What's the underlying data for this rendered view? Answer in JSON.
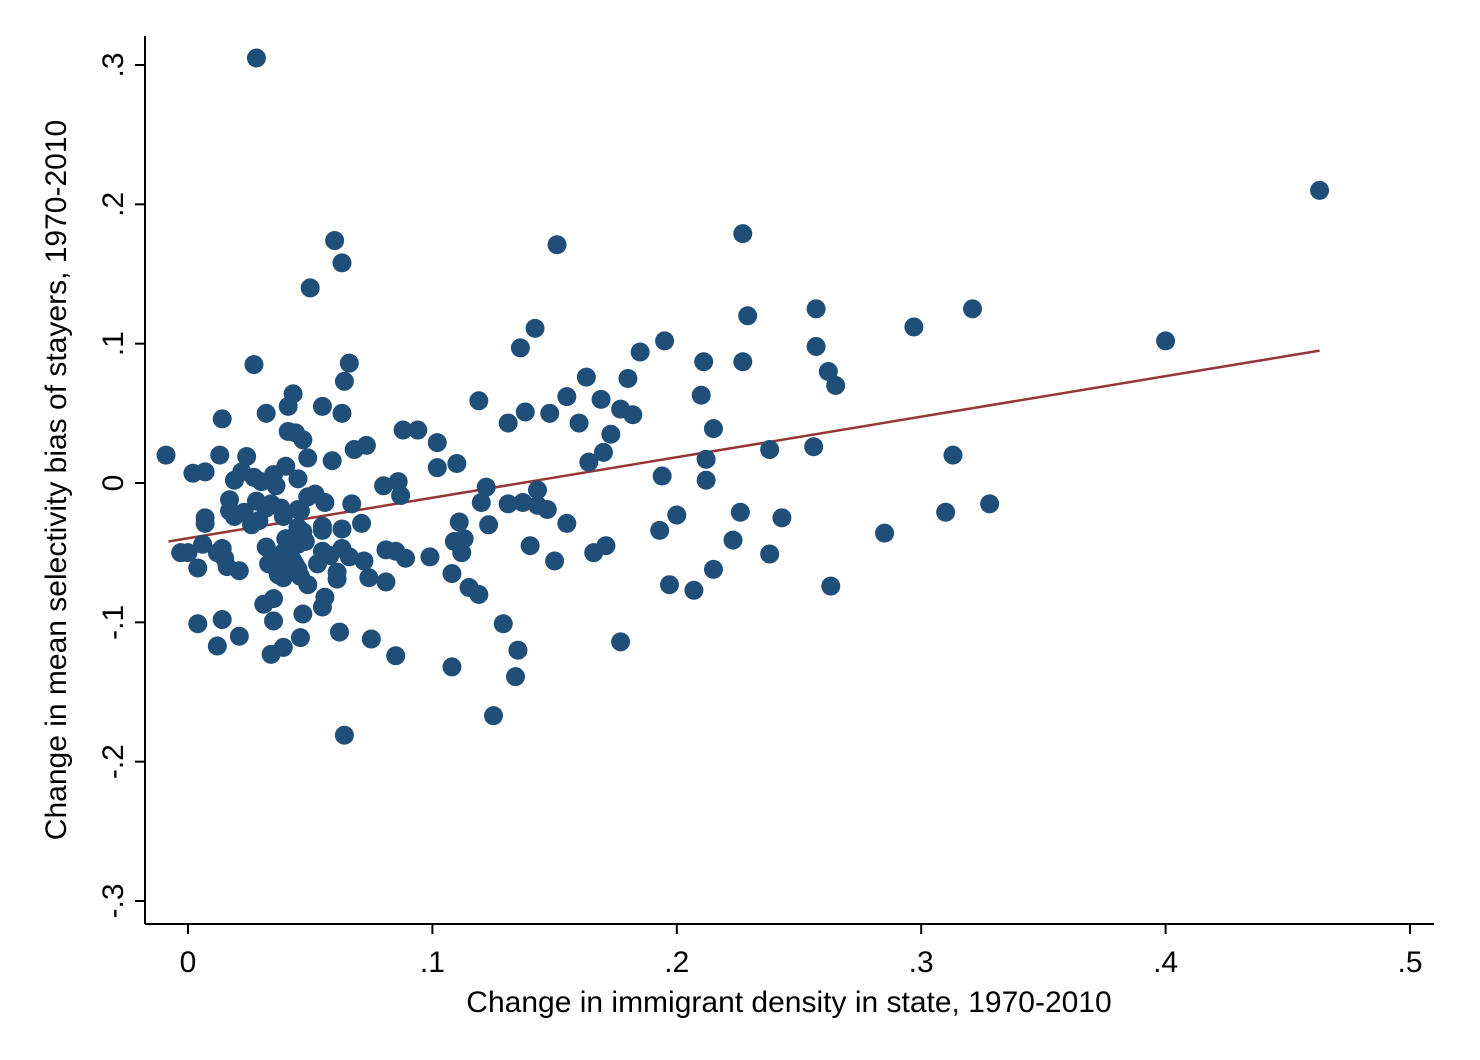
{
  "chart_data": {
    "type": "scatter",
    "title": "",
    "xlabel": "Change in immigrant density in state, 1970-2010",
    "ylabel": "Change in mean selectivity bias of stayers, 1970-2010",
    "xlim": [
      -0.018,
      0.508
    ],
    "ylim": [
      -0.31,
      0.32
    ],
    "xticks": [
      0,
      0.1,
      0.2,
      0.3,
      0.4,
      0.5
    ],
    "xtick_labels": [
      "0",
      ".1",
      ".2",
      ".3",
      ".4",
      ".5"
    ],
    "yticks": [
      -0.3,
      -0.2,
      -0.1,
      0,
      0.1,
      0.2,
      0.3
    ],
    "ytick_labels": [
      "-.3",
      "-.2",
      "-.1",
      "0",
      ".1",
      ".2",
      ".3"
    ],
    "grid": false,
    "legend": "none",
    "colors": {
      "points": "#1f4e79",
      "fit_line": "#963634",
      "axes": "#000000"
    },
    "fit_line": {
      "x": [
        -0.008,
        0.463
      ],
      "y": [
        -0.042,
        0.095
      ]
    },
    "points": [
      {
        "x": 0.028,
        "y": 0.305
      },
      {
        "x": 0.463,
        "y": 0.21
      },
      {
        "x": 0.227,
        "y": 0.179
      },
      {
        "x": 0.06,
        "y": 0.174
      },
      {
        "x": 0.151,
        "y": 0.171
      },
      {
        "x": 0.063,
        "y": 0.158
      },
      {
        "x": 0.05,
        "y": 0.14
      },
      {
        "x": 0.257,
        "y": 0.125
      },
      {
        "x": 0.321,
        "y": 0.125
      },
      {
        "x": 0.229,
        "y": 0.12
      },
      {
        "x": 0.297,
        "y": 0.112
      },
      {
        "x": 0.142,
        "y": 0.111
      },
      {
        "x": 0.195,
        "y": 0.102
      },
      {
        "x": 0.4,
        "y": 0.102
      },
      {
        "x": 0.257,
        "y": 0.098
      },
      {
        "x": 0.136,
        "y": 0.097
      },
      {
        "x": 0.185,
        "y": 0.094
      },
      {
        "x": 0.211,
        "y": 0.087
      },
      {
        "x": 0.227,
        "y": 0.087
      },
      {
        "x": 0.066,
        "y": 0.086
      },
      {
        "x": 0.027,
        "y": 0.085
      },
      {
        "x": 0.262,
        "y": 0.08
      },
      {
        "x": 0.163,
        "y": 0.076
      },
      {
        "x": 0.18,
        "y": 0.075
      },
      {
        "x": 0.064,
        "y": 0.073
      },
      {
        "x": 0.265,
        "y": 0.07
      },
      {
        "x": 0.043,
        "y": 0.064
      },
      {
        "x": 0.21,
        "y": 0.063
      },
      {
        "x": 0.155,
        "y": 0.062
      },
      {
        "x": 0.169,
        "y": 0.06
      },
      {
        "x": 0.119,
        "y": 0.059
      },
      {
        "x": 0.041,
        "y": 0.055
      },
      {
        "x": 0.055,
        "y": 0.055
      },
      {
        "x": 0.177,
        "y": 0.053
      },
      {
        "x": 0.138,
        "y": 0.051
      },
      {
        "x": 0.032,
        "y": 0.05
      },
      {
        "x": 0.063,
        "y": 0.05
      },
      {
        "x": 0.148,
        "y": 0.05
      },
      {
        "x": 0.182,
        "y": 0.049
      },
      {
        "x": 0.014,
        "y": 0.046
      },
      {
        "x": 0.131,
        "y": 0.043
      },
      {
        "x": 0.16,
        "y": 0.043
      },
      {
        "x": 0.215,
        "y": 0.039
      },
      {
        "x": 0.088,
        "y": 0.038
      },
      {
        "x": 0.094,
        "y": 0.038
      },
      {
        "x": 0.041,
        "y": 0.037
      },
      {
        "x": 0.044,
        "y": 0.036
      },
      {
        "x": 0.173,
        "y": 0.035
      },
      {
        "x": 0.047,
        "y": 0.031
      },
      {
        "x": 0.102,
        "y": 0.029
      },
      {
        "x": 0.073,
        "y": 0.027
      },
      {
        "x": 0.256,
        "y": 0.026
      },
      {
        "x": 0.068,
        "y": 0.024
      },
      {
        "x": 0.238,
        "y": 0.024
      },
      {
        "x": 0.17,
        "y": 0.022
      },
      {
        "x": -0.009,
        "y": 0.02
      },
      {
        "x": 0.013,
        "y": 0.02
      },
      {
        "x": 0.313,
        "y": 0.02
      },
      {
        "x": 0.024,
        "y": 0.019
      },
      {
        "x": 0.049,
        "y": 0.018
      },
      {
        "x": 0.212,
        "y": 0.017
      },
      {
        "x": 0.059,
        "y": 0.016
      },
      {
        "x": 0.164,
        "y": 0.015
      },
      {
        "x": 0.11,
        "y": 0.014
      },
      {
        "x": 0.04,
        "y": 0.012
      },
      {
        "x": 0.102,
        "y": 0.011
      },
      {
        "x": 0.007,
        "y": 0.008
      },
      {
        "x": 0.022,
        "y": 0.008
      },
      {
        "x": 0.002,
        "y": 0.007
      },
      {
        "x": 0.035,
        "y": 0.006
      },
      {
        "x": 0.194,
        "y": 0.005
      },
      {
        "x": 0.027,
        "y": 0.004
      },
      {
        "x": 0.045,
        "y": 0.003
      },
      {
        "x": 0.212,
        "y": 0.002
      },
      {
        "x": 0.019,
        "y": 0.002
      },
      {
        "x": 0.03,
        "y": 0.001
      },
      {
        "x": 0.086,
        "y": 0.001
      },
      {
        "x": 0.036,
        "y": -0.002
      },
      {
        "x": 0.08,
        "y": -0.002
      },
      {
        "x": 0.122,
        "y": -0.003
      },
      {
        "x": 0.143,
        "y": -0.005
      },
      {
        "x": 0.052,
        "y": -0.008
      },
      {
        "x": 0.087,
        "y": -0.009
      },
      {
        "x": 0.049,
        "y": -0.01
      },
      {
        "x": 0.017,
        "y": -0.012
      },
      {
        "x": 0.028,
        "y": -0.013
      },
      {
        "x": 0.056,
        "y": -0.014
      },
      {
        "x": 0.12,
        "y": -0.014
      },
      {
        "x": 0.137,
        "y": -0.014
      },
      {
        "x": 0.034,
        "y": -0.015
      },
      {
        "x": 0.067,
        "y": -0.015
      },
      {
        "x": 0.131,
        "y": -0.015
      },
      {
        "x": 0.328,
        "y": -0.015
      },
      {
        "x": 0.143,
        "y": -0.016
      },
      {
        "x": 0.032,
        "y": -0.018
      },
      {
        "x": 0.038,
        "y": -0.018
      },
      {
        "x": 0.045,
        "y": -0.019
      },
      {
        "x": 0.147,
        "y": -0.019
      },
      {
        "x": 0.017,
        "y": -0.02
      },
      {
        "x": 0.046,
        "y": -0.02
      },
      {
        "x": 0.023,
        "y": -0.021
      },
      {
        "x": 0.226,
        "y": -0.021
      },
      {
        "x": 0.31,
        "y": -0.021
      },
      {
        "x": 0.2,
        "y": -0.023
      },
      {
        "x": 0.019,
        "y": -0.024
      },
      {
        "x": 0.039,
        "y": -0.024
      },
      {
        "x": 0.007,
        "y": -0.025
      },
      {
        "x": 0.243,
        "y": -0.025
      },
      {
        "x": 0.029,
        "y": -0.027
      },
      {
        "x": 0.111,
        "y": -0.028
      },
      {
        "x": 0.007,
        "y": -0.029
      },
      {
        "x": 0.071,
        "y": -0.029
      },
      {
        "x": 0.155,
        "y": -0.029
      },
      {
        "x": 0.026,
        "y": -0.03
      },
      {
        "x": 0.123,
        "y": -0.03
      },
      {
        "x": 0.055,
        "y": -0.031
      },
      {
        "x": 0.045,
        "y": -0.032
      },
      {
        "x": 0.063,
        "y": -0.033
      },
      {
        "x": 0.055,
        "y": -0.034
      },
      {
        "x": 0.193,
        "y": -0.034
      },
      {
        "x": 0.047,
        "y": -0.035
      },
      {
        "x": 0.285,
        "y": -0.036
      },
      {
        "x": 0.045,
        "y": -0.038
      },
      {
        "x": 0.043,
        "y": -0.039
      },
      {
        "x": 0.04,
        "y": -0.04
      },
      {
        "x": 0.113,
        "y": -0.04
      },
      {
        "x": 0.223,
        "y": -0.041
      },
      {
        "x": 0.048,
        "y": -0.042
      },
      {
        "x": 0.109,
        "y": -0.042
      },
      {
        "x": 0.006,
        "y": -0.044
      },
      {
        "x": 0.045,
        "y": -0.044
      },
      {
        "x": 0.171,
        "y": -0.045
      },
      {
        "x": 0.14,
        "y": -0.045
      },
      {
        "x": 0.032,
        "y": -0.046
      },
      {
        "x": 0.063,
        "y": -0.047
      },
      {
        "x": 0.014,
        "y": -0.047
      },
      {
        "x": 0.081,
        "y": -0.048
      },
      {
        "x": 0.085,
        "y": -0.049
      },
      {
        "x": 0.055,
        "y": -0.049
      },
      {
        "x": -0.003,
        "y": -0.05
      },
      {
        "x": 0.0,
        "y": -0.05
      },
      {
        "x": 0.039,
        "y": -0.05
      },
      {
        "x": 0.112,
        "y": -0.05
      },
      {
        "x": 0.166,
        "y": -0.05
      },
      {
        "x": 0.012,
        "y": -0.05
      },
      {
        "x": 0.238,
        "y": -0.051
      },
      {
        "x": 0.058,
        "y": -0.052
      },
      {
        "x": 0.099,
        "y": -0.053
      },
      {
        "x": 0.041,
        "y": -0.053
      },
      {
        "x": 0.066,
        "y": -0.053
      },
      {
        "x": 0.015,
        "y": -0.054
      },
      {
        "x": 0.089,
        "y": -0.054
      },
      {
        "x": 0.035,
        "y": -0.055
      },
      {
        "x": 0.15,
        "y": -0.056
      },
      {
        "x": 0.043,
        "y": -0.056
      },
      {
        "x": 0.072,
        "y": -0.056
      },
      {
        "x": 0.037,
        "y": -0.057
      },
      {
        "x": 0.053,
        "y": -0.058
      },
      {
        "x": 0.033,
        "y": -0.058
      },
      {
        "x": 0.044,
        "y": -0.059
      },
      {
        "x": 0.016,
        "y": -0.06
      },
      {
        "x": 0.004,
        "y": -0.061
      },
      {
        "x": 0.036,
        "y": -0.061
      },
      {
        "x": 0.215,
        "y": -0.062
      },
      {
        "x": 0.045,
        "y": -0.062
      },
      {
        "x": 0.021,
        "y": -0.063
      },
      {
        "x": 0.041,
        "y": -0.063
      },
      {
        "x": 0.061,
        "y": -0.064
      },
      {
        "x": 0.108,
        "y": -0.065
      },
      {
        "x": 0.037,
        "y": -0.066
      },
      {
        "x": 0.046,
        "y": -0.067
      },
      {
        "x": 0.074,
        "y": -0.068
      },
      {
        "x": 0.039,
        "y": -0.068
      },
      {
        "x": 0.061,
        "y": -0.069
      },
      {
        "x": 0.081,
        "y": -0.071
      },
      {
        "x": 0.049,
        "y": -0.073
      },
      {
        "x": 0.197,
        "y": -0.073
      },
      {
        "x": 0.263,
        "y": -0.074
      },
      {
        "x": 0.115,
        "y": -0.075
      },
      {
        "x": 0.207,
        "y": -0.077
      },
      {
        "x": 0.119,
        "y": -0.08
      },
      {
        "x": 0.056,
        "y": -0.082
      },
      {
        "x": 0.035,
        "y": -0.083
      },
      {
        "x": 0.031,
        "y": -0.087
      },
      {
        "x": 0.055,
        "y": -0.089
      },
      {
        "x": 0.047,
        "y": -0.094
      },
      {
        "x": 0.014,
        "y": -0.098
      },
      {
        "x": 0.035,
        "y": -0.099
      },
      {
        "x": 0.129,
        "y": -0.101
      },
      {
        "x": 0.004,
        "y": -0.101
      },
      {
        "x": 0.062,
        "y": -0.107
      },
      {
        "x": 0.021,
        "y": -0.11
      },
      {
        "x": 0.046,
        "y": -0.111
      },
      {
        "x": 0.075,
        "y": -0.112
      },
      {
        "x": 0.177,
        "y": -0.114
      },
      {
        "x": 0.012,
        "y": -0.117
      },
      {
        "x": 0.039,
        "y": -0.118
      },
      {
        "x": 0.135,
        "y": -0.12
      },
      {
        "x": 0.034,
        "y": -0.123
      },
      {
        "x": 0.085,
        "y": -0.124
      },
      {
        "x": 0.108,
        "y": -0.132
      },
      {
        "x": 0.134,
        "y": -0.139
      },
      {
        "x": 0.125,
        "y": -0.167
      },
      {
        "x": 0.064,
        "y": -0.181
      }
    ]
  }
}
